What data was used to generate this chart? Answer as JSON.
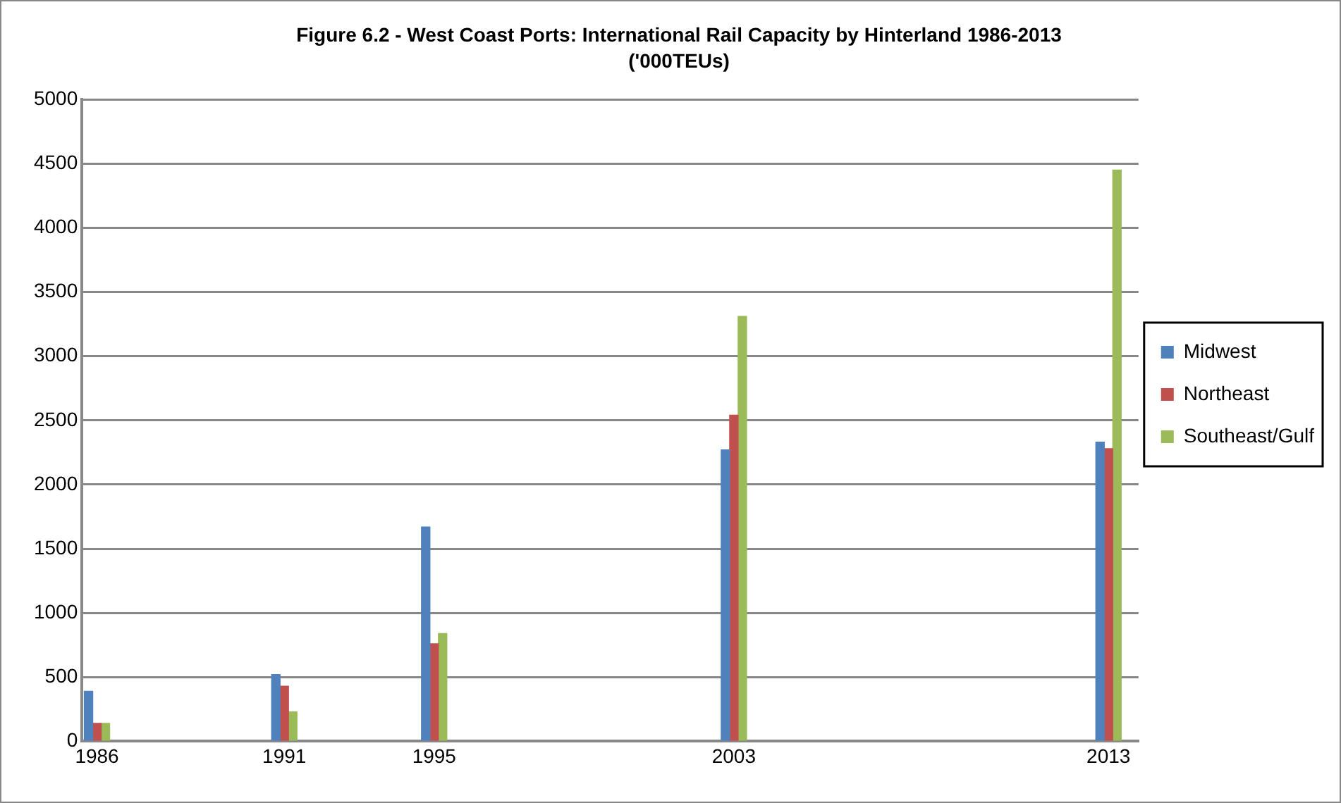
{
  "chart_data": {
    "type": "bar",
    "title": "Figure 6.2 - West Coast Ports: International Rail Capacity by Hinterland 1986-2013",
    "subtitle": "('000TEUs)",
    "x": [
      1986,
      1991,
      1995,
      2003,
      2013
    ],
    "series": [
      {
        "name": "Midwest",
        "color": "#4f81bd",
        "values": [
          390,
          520,
          1670,
          2270,
          2330
        ]
      },
      {
        "name": "Northeast",
        "color": "#c0504d",
        "values": [
          140,
          430,
          760,
          2540,
          2280
        ]
      },
      {
        "name": "Southeast/Gulf",
        "color": "#9bbb59",
        "values": [
          140,
          230,
          840,
          3310,
          4450
        ]
      }
    ],
    "xlim": [
      1985.6,
      2013.8
    ],
    "xticks": [
      1986,
      1991,
      1995,
      2003,
      2013
    ],
    "ylim": [
      0,
      5000
    ],
    "yticks": [
      0,
      500,
      1000,
      1500,
      2000,
      2500,
      3000,
      3500,
      4000,
      4500,
      5000
    ],
    "grid": "y",
    "legend": "right"
  }
}
